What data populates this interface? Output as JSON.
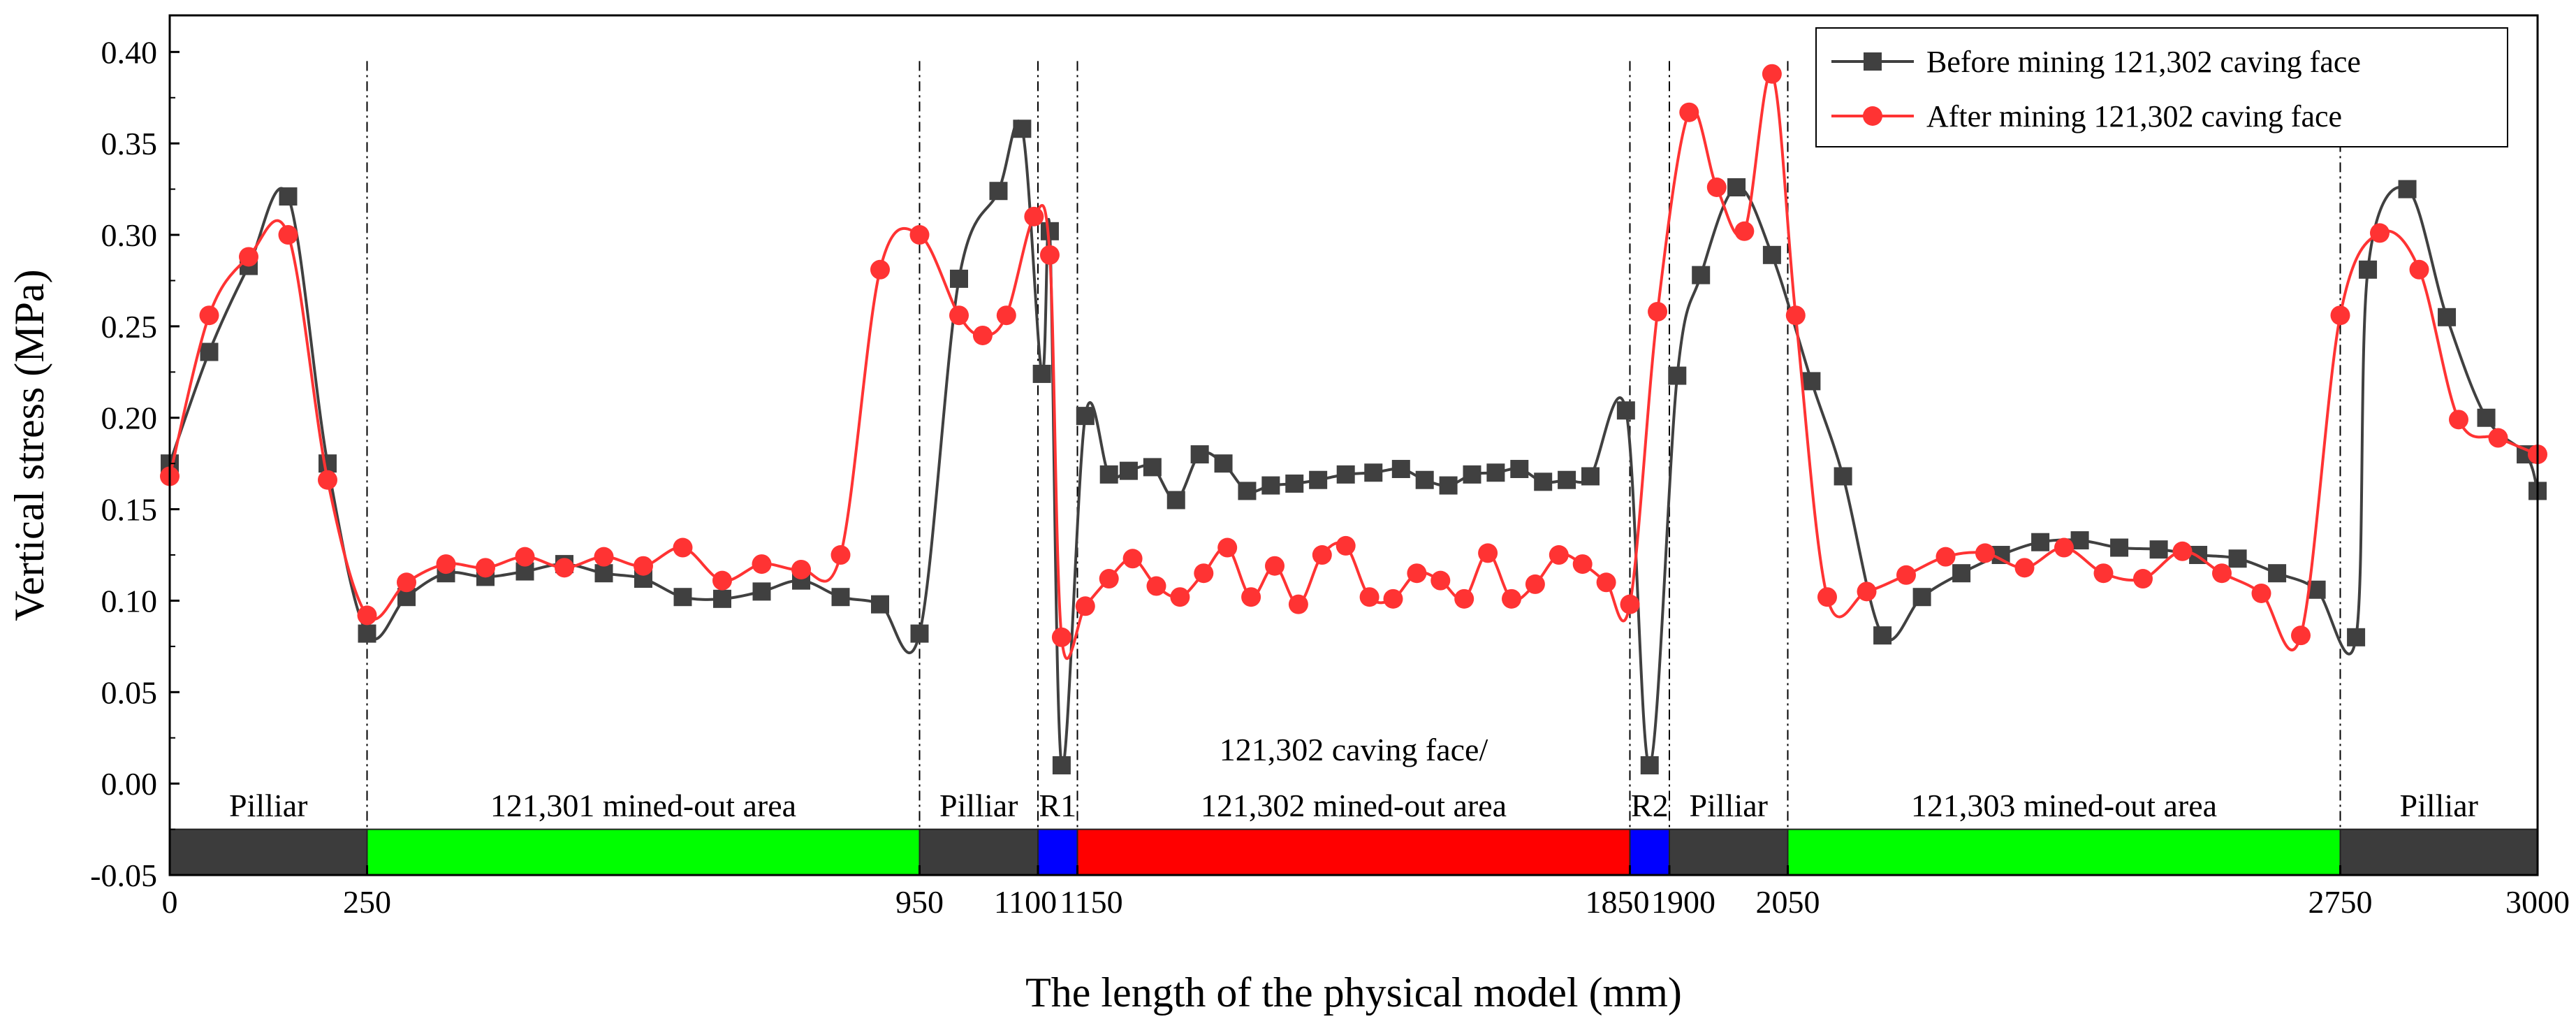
{
  "chart_data": {
    "type": "line",
    "xlabel": "The length of the physical model (mm)",
    "ylabel": "Vertical stress (MPa)",
    "xlim": [
      0,
      3000
    ],
    "ylim": [
      -0.05,
      0.42
    ],
    "x_ticks": [
      0,
      250,
      950,
      1100,
      1150,
      1850,
      1900,
      2050,
      2750,
      3000
    ],
    "y_ticks": [
      -0.05,
      0.0,
      0.05,
      0.1,
      0.15,
      0.2,
      0.25,
      0.3,
      0.35,
      0.4
    ],
    "x_tick_labels": [
      "0",
      "250",
      "950",
      "1100",
      "1150",
      "1850",
      "1900",
      "2050",
      "2750",
      "3000"
    ],
    "y_tick_labels": [
      "-0.05",
      "0.00",
      "0.05",
      "0.10",
      "0.15",
      "0.20",
      "0.25",
      "0.30",
      "0.35",
      "0.40"
    ],
    "vertical_reference_lines": [
      250,
      950,
      1100,
      1150,
      1850,
      1900,
      2050,
      2750
    ],
    "legend": {
      "placement": "top-right"
    },
    "grid": false,
    "regions": [
      {
        "label": "Pilliar",
        "start": 0,
        "end": 250,
        "color": "#3c3c3c"
      },
      {
        "label": "121,301 mined-out area",
        "start": 250,
        "end": 950,
        "color": "#00ff00"
      },
      {
        "label": "Pilliar",
        "start": 950,
        "end": 1100,
        "color": "#3c3c3c"
      },
      {
        "label": "R1",
        "start": 1100,
        "end": 1150,
        "color": "#0000ff"
      },
      {
        "label": "121,302 caving face/",
        "label2": "121,302 mined-out area",
        "start": 1150,
        "end": 1850,
        "color": "#ff0000"
      },
      {
        "label": "R2",
        "start": 1850,
        "end": 1900,
        "color": "#0000ff"
      },
      {
        "label": "Pilliar",
        "start": 1900,
        "end": 2050,
        "color": "#3c3c3c"
      },
      {
        "label": "121,303 mined-out area",
        "start": 2050,
        "end": 2750,
        "color": "#00ff00"
      },
      {
        "label": "Pilliar",
        "start": 2750,
        "end": 3000,
        "color": "#3c3c3c"
      }
    ],
    "series": [
      {
        "name": "Before mining 121,302 caving face",
        "color": "#404040",
        "marker": "square",
        "points": [
          [
            0,
            0.175
          ],
          [
            50,
            0.236
          ],
          [
            100,
            0.283
          ],
          [
            150,
            0.321
          ],
          [
            200,
            0.175
          ],
          [
            250,
            0.082
          ],
          [
            300,
            0.102
          ],
          [
            350,
            0.115
          ],
          [
            400,
            0.113
          ],
          [
            450,
            0.116
          ],
          [
            500,
            0.12
          ],
          [
            550,
            0.115
          ],
          [
            600,
            0.112
          ],
          [
            650,
            0.102
          ],
          [
            700,
            0.101
          ],
          [
            750,
            0.105
          ],
          [
            800,
            0.111
          ],
          [
            850,
            0.102
          ],
          [
            900,
            0.098
          ],
          [
            950,
            0.082
          ],
          [
            1000,
            0.276
          ],
          [
            1050,
            0.324
          ],
          [
            1080,
            0.358
          ],
          [
            1115,
            0.302
          ],
          [
            1105,
            0.224
          ],
          [
            1130,
            0.01
          ],
          [
            1160,
            0.201
          ],
          [
            1190,
            0.169
          ],
          [
            1215,
            0.171
          ],
          [
            1245,
            0.173
          ],
          [
            1275,
            0.155
          ],
          [
            1305,
            0.18
          ],
          [
            1335,
            0.175
          ],
          [
            1365,
            0.16
          ],
          [
            1395,
            0.163
          ],
          [
            1425,
            0.164
          ],
          [
            1455,
            0.166
          ],
          [
            1490,
            0.169
          ],
          [
            1525,
            0.17
          ],
          [
            1560,
            0.172
          ],
          [
            1590,
            0.166
          ],
          [
            1620,
            0.163
          ],
          [
            1650,
            0.169
          ],
          [
            1680,
            0.17
          ],
          [
            1710,
            0.172
          ],
          [
            1740,
            0.165
          ],
          [
            1770,
            0.166
          ],
          [
            1800,
            0.168
          ],
          [
            1845,
            0.204
          ],
          [
            1875,
            0.01
          ],
          [
            1910,
            0.223
          ],
          [
            1940,
            0.278
          ],
          [
            1985,
            0.326
          ],
          [
            2030,
            0.289
          ],
          [
            2080,
            0.22
          ],
          [
            2120,
            0.168
          ],
          [
            2170,
            0.081
          ],
          [
            2220,
            0.102
          ],
          [
            2270,
            0.115
          ],
          [
            2320,
            0.125
          ],
          [
            2370,
            0.132
          ],
          [
            2420,
            0.133
          ],
          [
            2470,
            0.129
          ],
          [
            2520,
            0.128
          ],
          [
            2570,
            0.125
          ],
          [
            2620,
            0.123
          ],
          [
            2670,
            0.115
          ],
          [
            2720,
            0.106
          ],
          [
            2770,
            0.08
          ],
          [
            2785,
            0.281
          ],
          [
            2835,
            0.325
          ],
          [
            2885,
            0.255
          ],
          [
            2935,
            0.2
          ],
          [
            2985,
            0.18
          ],
          [
            3000,
            0.16
          ]
        ]
      },
      {
        "name": "After mining 121,302 caving face",
        "color": "#ff3333",
        "marker": "circle",
        "points": [
          [
            0,
            0.168
          ],
          [
            50,
            0.256
          ],
          [
            100,
            0.288
          ],
          [
            150,
            0.3
          ],
          [
            200,
            0.166
          ],
          [
            250,
            0.092
          ],
          [
            300,
            0.11
          ],
          [
            350,
            0.12
          ],
          [
            400,
            0.118
          ],
          [
            450,
            0.124
          ],
          [
            500,
            0.118
          ],
          [
            550,
            0.124
          ],
          [
            600,
            0.119
          ],
          [
            650,
            0.129
          ],
          [
            700,
            0.111
          ],
          [
            750,
            0.12
          ],
          [
            800,
            0.117
          ],
          [
            850,
            0.125
          ],
          [
            900,
            0.281
          ],
          [
            950,
            0.3
          ],
          [
            1000,
            0.256
          ],
          [
            1030,
            0.245
          ],
          [
            1060,
            0.256
          ],
          [
            1095,
            0.31
          ],
          [
            1115,
            0.289
          ],
          [
            1130,
            0.08
          ],
          [
            1160,
            0.097
          ],
          [
            1190,
            0.112
          ],
          [
            1220,
            0.123
          ],
          [
            1250,
            0.108
          ],
          [
            1280,
            0.102
          ],
          [
            1310,
            0.115
          ],
          [
            1340,
            0.129
          ],
          [
            1370,
            0.102
          ],
          [
            1400,
            0.119
          ],
          [
            1430,
            0.098
          ],
          [
            1460,
            0.125
          ],
          [
            1490,
            0.13
          ],
          [
            1520,
            0.102
          ],
          [
            1550,
            0.101
          ],
          [
            1580,
            0.115
          ],
          [
            1610,
            0.111
          ],
          [
            1640,
            0.101
          ],
          [
            1670,
            0.126
          ],
          [
            1700,
            0.101
          ],
          [
            1730,
            0.109
          ],
          [
            1760,
            0.125
          ],
          [
            1790,
            0.12
          ],
          [
            1820,
            0.11
          ],
          [
            1850,
            0.098
          ],
          [
            1885,
            0.258
          ],
          [
            1925,
            0.367
          ],
          [
            1960,
            0.326
          ],
          [
            1995,
            0.302
          ],
          [
            2030,
            0.388
          ],
          [
            2060,
            0.256
          ],
          [
            2100,
            0.102
          ],
          [
            2150,
            0.105
          ],
          [
            2200,
            0.114
          ],
          [
            2250,
            0.124
          ],
          [
            2300,
            0.126
          ],
          [
            2350,
            0.118
          ],
          [
            2400,
            0.129
          ],
          [
            2450,
            0.115
          ],
          [
            2500,
            0.112
          ],
          [
            2550,
            0.127
          ],
          [
            2600,
            0.115
          ],
          [
            2650,
            0.104
          ],
          [
            2700,
            0.081
          ],
          [
            2750,
            0.256
          ],
          [
            2800,
            0.301
          ],
          [
            2850,
            0.281
          ],
          [
            2900,
            0.199
          ],
          [
            2950,
            0.189
          ],
          [
            3000,
            0.18
          ]
        ]
      }
    ]
  }
}
